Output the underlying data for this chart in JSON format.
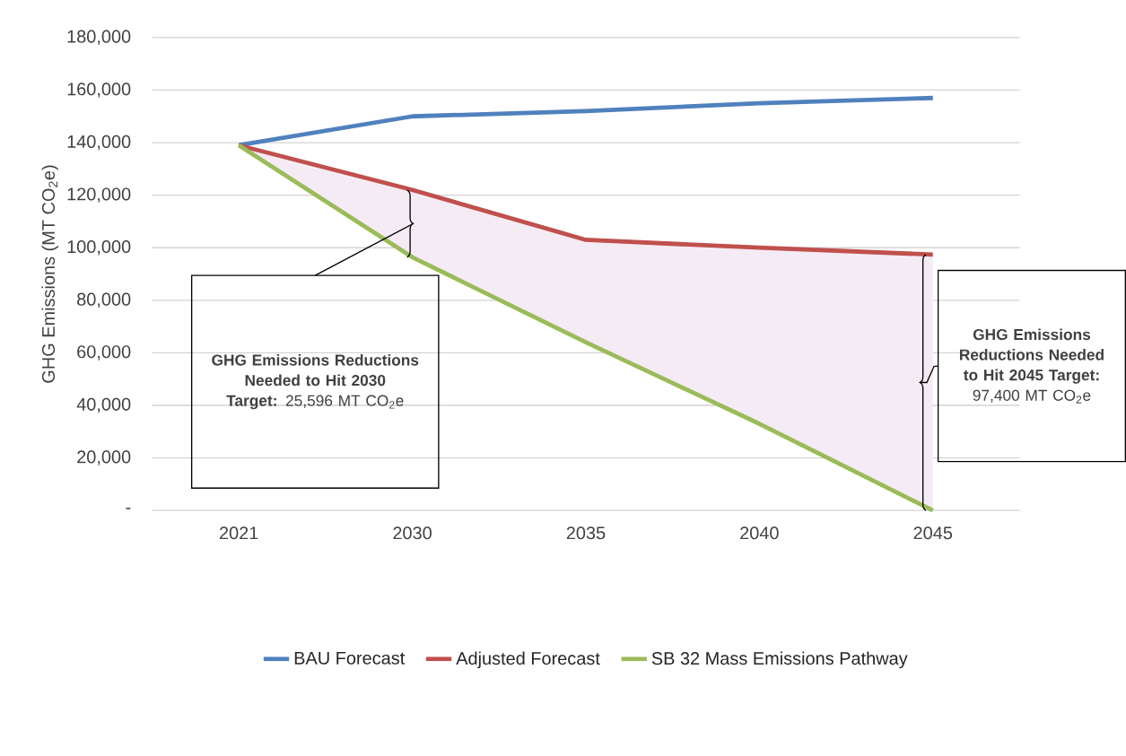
{
  "chart_data": {
    "type": "line",
    "ylabel": "GHG Emissions (MT CO$_{2}$e)",
    "categories": [
      "2021",
      "2030",
      "2035",
      "2040",
      "2045"
    ],
    "series": [
      {
        "name": "BAU Forecast",
        "color": "#4f81bd",
        "values": [
          139000,
          150000,
          152000,
          155000,
          157000
        ]
      },
      {
        "name": "Adjusted Forecast",
        "color": "#c0504d",
        "values": [
          139000,
          122000,
          103000,
          100000,
          97400
        ],
        "lower": [
          139000,
          96400,
          64000,
          33000,
          0
        ],
        "upper": [
          139000,
          122000,
          103000,
          100000,
          97400
        ]
      },
      {
        "name": "SB 32 Mass Emissions Pathway",
        "color": "#9bbb59",
        "values": [
          139000,
          96400,
          64000,
          33000,
          0
        ]
      }
    ],
    "ylim": [
      0,
      180000
    ],
    "yticks": [
      {
        "value": 0,
        "label": "-"
      },
      {
        "value": 20000,
        "label": "20,000"
      },
      {
        "value": 40000,
        "label": "40,000"
      },
      {
        "value": 60000,
        "label": "60,000"
      },
      {
        "value": 80000,
        "label": "80,000"
      },
      {
        "value": 100000,
        "label": "100,000"
      },
      {
        "value": 120000,
        "label": "120,000"
      },
      {
        "value": 140000,
        "label": "140,000"
      },
      {
        "value": 160000,
        "label": "160,000"
      },
      {
        "value": 180000,
        "label": "180,000"
      }
    ],
    "grid": "y",
    "legend": "bottom",
    "marker": "none",
    "line_style": "solid",
    "annotations": [
      "**GHG Emissions Reductions Needed to Hit 2030 Target:** 25,596 MT CO$_{2}$e",
      "**GHG Emissions Reductions Needed to Hit 2045 Target:** 97,400 MT CO$_{2}$e"
    ]
  }
}
